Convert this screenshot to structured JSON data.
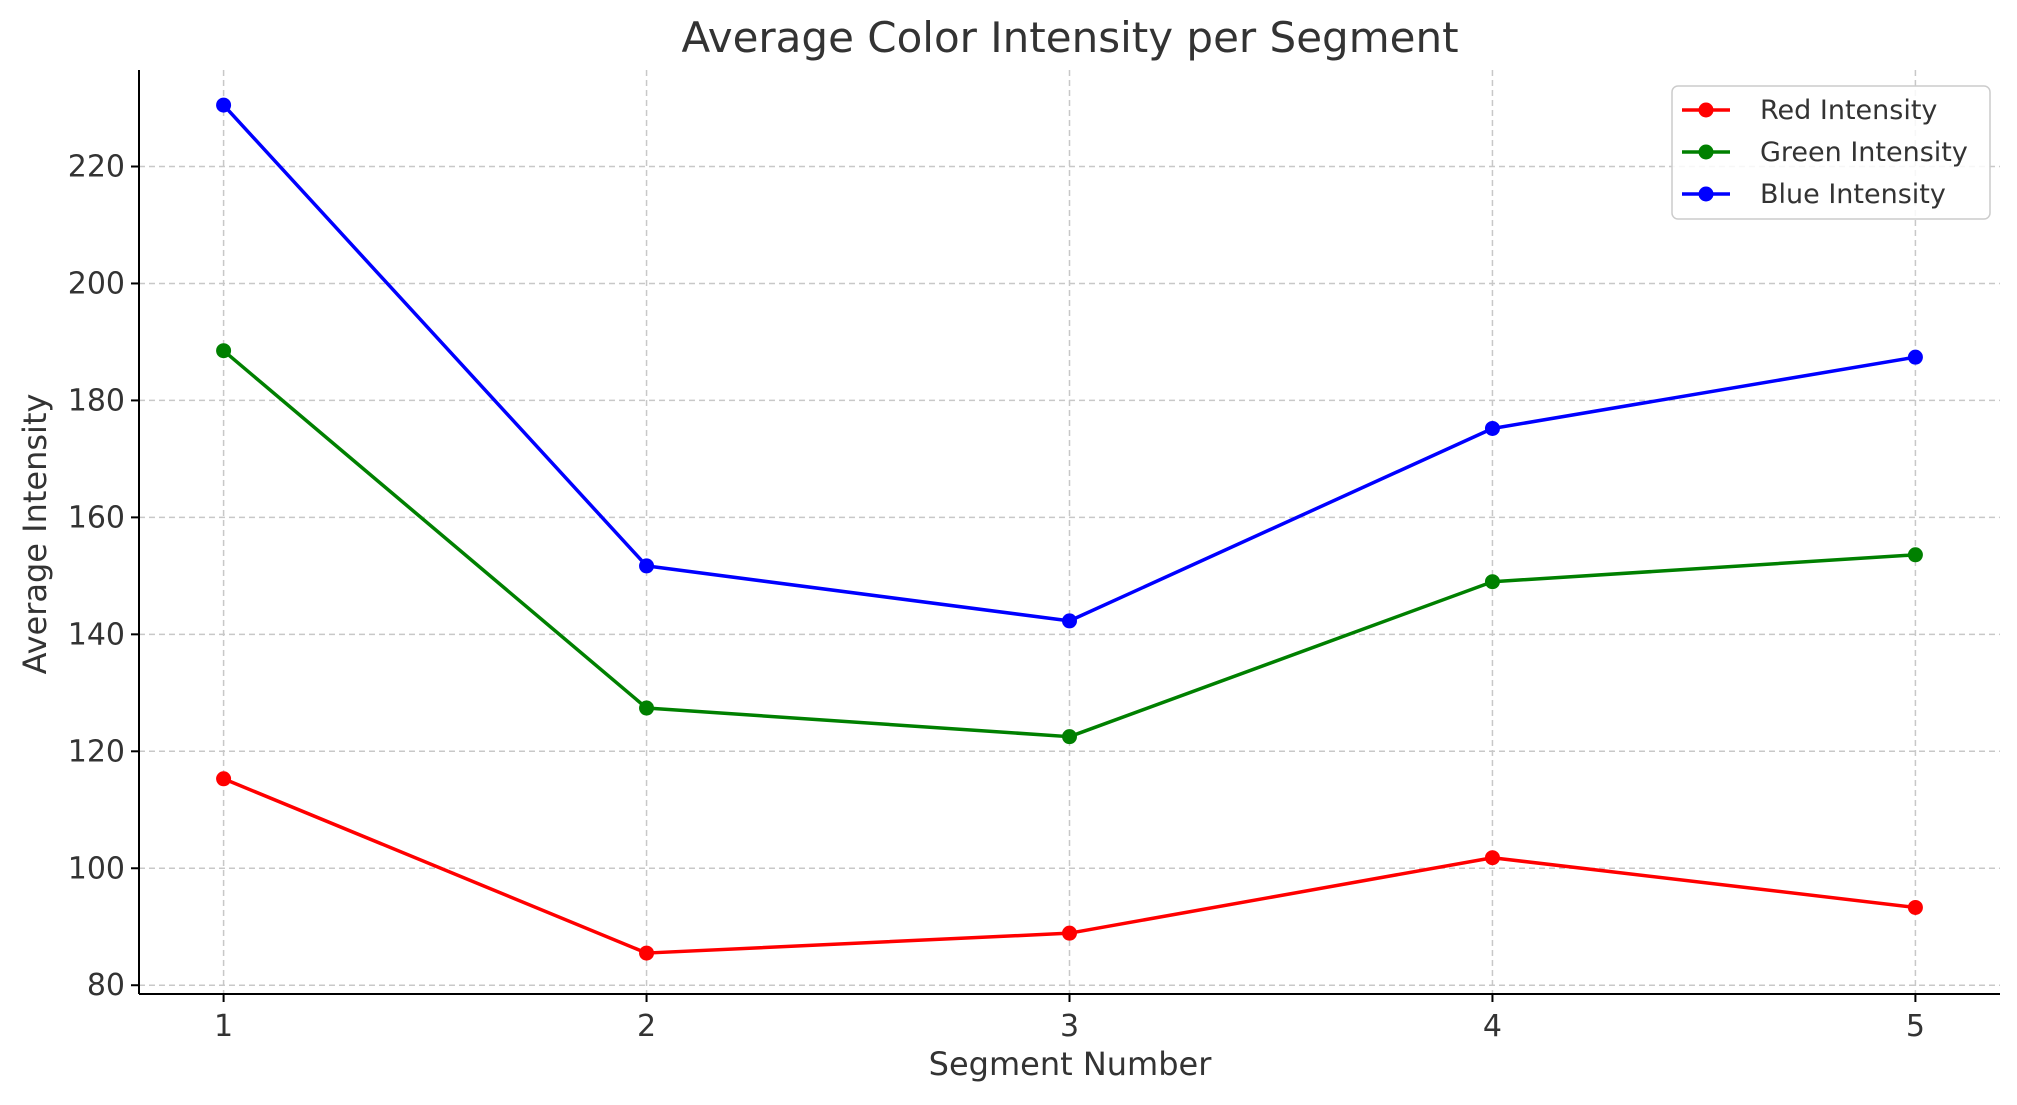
{
  "chart_data": {
    "type": "line",
    "title": "Average Color Intensity per Segment",
    "xlabel": "Segment Number",
    "ylabel": "Average Intensity",
    "x": [
      1,
      2,
      3,
      4,
      5
    ],
    "xlim": [
      0.8,
      5.2
    ],
    "ylim": [
      78.5,
      236.5
    ],
    "yticks": [
      80,
      100,
      120,
      140,
      160,
      180,
      200,
      220
    ],
    "xticks": [
      1,
      2,
      3,
      4,
      5
    ],
    "grid": true,
    "legend_position": "top-right",
    "series": [
      {
        "name": "Red Intensity",
        "color": "#ff0000",
        "values": [
          115.3,
          85.5,
          88.9,
          101.8,
          93.3
        ]
      },
      {
        "name": "Green Intensity",
        "color": "#008000",
        "values": [
          188.5,
          127.4,
          122.5,
          149.0,
          153.6
        ]
      },
      {
        "name": "Blue Intensity",
        "color": "#0000ff",
        "values": [
          230.5,
          151.7,
          142.3,
          175.2,
          187.4
        ]
      }
    ]
  }
}
